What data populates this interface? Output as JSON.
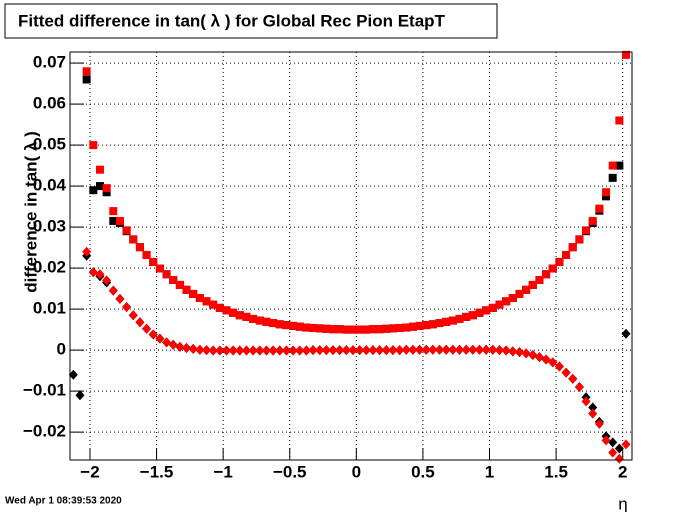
{
  "chart_data": {
    "type": "scatter",
    "title": "Fitted difference in tan( λ ) for Global Rec Pion EtapT",
    "y_label": "difference in tan( λ )",
    "x_label": "η",
    "timestamp": "Wed Apr  1 08:39:53 2020",
    "xlim": [
      -2.15,
      2.07
    ],
    "ylim": [
      -0.0268,
      0.0727
    ],
    "grid": true,
    "xticks": [
      {
        "value": -2,
        "label": "−2"
      },
      {
        "value": -1.5,
        "label": "−1.5"
      },
      {
        "value": -1,
        "label": "−1"
      },
      {
        "value": -0.5,
        "label": "−0.5"
      },
      0,
      0.5,
      1,
      1.5,
      2
    ],
    "yticks": [
      {
        "value": -0.02,
        "label": "−0.02"
      },
      {
        "value": -0.01,
        "label": "−0.01"
      },
      0,
      0.01,
      0.02,
      0.03,
      0.04,
      0.05,
      0.06,
      0.07
    ],
    "x": [
      -2.125,
      -2.075,
      -2.025,
      -1.975,
      -1.925,
      -1.875,
      -1.825,
      -1.775,
      -1.725,
      -1.675,
      -1.625,
      -1.575,
      -1.525,
      -1.475,
      -1.425,
      -1.375,
      -1.325,
      -1.275,
      -1.225,
      -1.175,
      -1.125,
      -1.075,
      -1.025,
      -0.975,
      -0.925,
      -0.875,
      -0.825,
      -0.775,
      -0.725,
      -0.675,
      -0.625,
      -0.575,
      -0.525,
      -0.475,
      -0.425,
      -0.375,
      -0.325,
      -0.275,
      -0.225,
      -0.175,
      -0.125,
      -0.075,
      -0.025,
      0.025,
      0.075,
      0.125,
      0.175,
      0.225,
      0.275,
      0.325,
      0.375,
      0.425,
      0.475,
      0.525,
      0.575,
      0.625,
      0.675,
      0.725,
      0.775,
      0.825,
      0.875,
      0.925,
      0.975,
      1.025,
      1.075,
      1.125,
      1.175,
      1.225,
      1.275,
      1.325,
      1.375,
      1.425,
      1.475,
      1.525,
      1.575,
      1.625,
      1.675,
      1.725,
      1.775,
      1.825,
      1.875,
      1.925,
      1.975,
      2.025
    ],
    "series": [
      {
        "marker": "square",
        "color": "#000000",
        "values": [
          null,
          null,
          0.066,
          0.039,
          0.04,
          0.0385,
          0.0315,
          0.031,
          0.029,
          0.027,
          0.0251,
          0.0232,
          0.0215,
          0.0199,
          0.0185,
          0.0171,
          0.0159,
          0.0147,
          0.0137,
          0.0127,
          0.0119,
          0.0111,
          0.0103,
          0.0097,
          0.0091,
          0.0085,
          0.0081,
          0.0076,
          0.0072,
          0.0069,
          0.0066,
          0.0063,
          0.0061,
          0.0059,
          0.0057,
          0.0055,
          0.0054,
          0.0053,
          0.0052,
          0.0051,
          0.0051,
          0.005,
          0.005,
          0.005,
          0.005,
          0.0051,
          0.0051,
          0.0052,
          0.0053,
          0.0054,
          0.0055,
          0.0057,
          0.0059,
          0.0061,
          0.0063,
          0.0066,
          0.0069,
          0.0072,
          0.0076,
          0.0081,
          0.0085,
          0.0091,
          0.0097,
          0.0103,
          0.0111,
          0.0119,
          0.0127,
          0.0137,
          0.0147,
          0.0159,
          0.0171,
          0.0185,
          0.0199,
          0.0215,
          0.0232,
          0.0251,
          0.027,
          0.029,
          0.031,
          0.034,
          0.0375,
          0.042,
          0.045,
          null
        ]
      },
      {
        "marker": "square",
        "color": "#ff0000",
        "values": [
          null,
          null,
          0.068,
          0.05,
          0.044,
          0.0395,
          0.0339,
          0.0315,
          0.0292,
          0.027,
          0.0251,
          0.0232,
          0.0215,
          0.0199,
          0.0185,
          0.0171,
          0.0159,
          0.0147,
          0.0137,
          0.0127,
          0.0119,
          0.0111,
          0.0103,
          0.0097,
          0.0091,
          0.0085,
          0.0081,
          0.0076,
          0.0072,
          0.0069,
          0.0066,
          0.0063,
          0.0061,
          0.0059,
          0.0057,
          0.0055,
          0.0054,
          0.0053,
          0.0052,
          0.0051,
          0.0051,
          0.005,
          0.005,
          0.005,
          0.005,
          0.0051,
          0.0051,
          0.0052,
          0.0053,
          0.0054,
          0.0055,
          0.0057,
          0.0059,
          0.0061,
          0.0063,
          0.0066,
          0.0069,
          0.0072,
          0.0076,
          0.0081,
          0.0085,
          0.0091,
          0.0097,
          0.0103,
          0.0111,
          0.0119,
          0.0127,
          0.0137,
          0.0147,
          0.0159,
          0.0171,
          0.0185,
          0.0199,
          0.0215,
          0.0232,
          0.0251,
          0.027,
          0.0292,
          0.0315,
          0.0345,
          0.0385,
          0.045,
          0.056,
          0.072
        ]
      },
      {
        "marker": "diamond",
        "color": "#000000",
        "values": [
          -0.006,
          -0.011,
          0.023,
          0.019,
          0.018,
          0.0165,
          0.0145,
          0.0125,
          0.0105,
          0.0085,
          0.0068,
          0.0052,
          0.0038,
          0.0028,
          0.0019,
          0.0013,
          0.0008,
          0.0005,
          0.0003,
          0.0001,
          0,
          -0.0001,
          -0.0001,
          -0.0001,
          -0.0001,
          -0.0001,
          -0.0001,
          -0.0001,
          -0.0001,
          -0.0001,
          -0.0001,
          -0.0001,
          -0.0001,
          -0.0001,
          -0.0001,
          -0.0001,
          0,
          0,
          0,
          0,
          0,
          0,
          0,
          0,
          0,
          0,
          0,
          0,
          0,
          0,
          0.0001,
          0.0001,
          0.0001,
          0.0001,
          0.0001,
          0.0001,
          0.0001,
          0.0001,
          0.0001,
          0.0001,
          0.0001,
          0.0001,
          0.0001,
          0.0001,
          0,
          -0.0001,
          -0.0003,
          -0.0005,
          -0.0008,
          -0.0012,
          -0.0017,
          -0.0023,
          -0.003,
          -0.004,
          -0.0055,
          -0.007,
          -0.009,
          -0.0115,
          -0.014,
          -0.0175,
          -0.021,
          -0.0225,
          -0.024,
          0.004
        ]
      },
      {
        "marker": "diamond",
        "color": "#ff0000",
        "values": [
          null,
          null,
          0.024,
          0.019,
          0.0185,
          0.017,
          0.0145,
          0.0125,
          0.0105,
          0.0085,
          0.0068,
          0.0052,
          0.0038,
          0.0028,
          0.0019,
          0.0013,
          0.0008,
          0.0005,
          0.0003,
          0.0001,
          0,
          -0.0001,
          -0.0001,
          -0.0001,
          -0.0001,
          -0.0001,
          -0.0001,
          -0.0001,
          -0.0001,
          -0.0001,
          -0.0001,
          -0.0001,
          -0.0001,
          -0.0001,
          -0.0001,
          -0.0001,
          0,
          0,
          0,
          0,
          0,
          0,
          0,
          0,
          0,
          0,
          0,
          0,
          0,
          0,
          0.0001,
          0.0001,
          0.0001,
          0.0001,
          0.0001,
          0.0001,
          0.0001,
          0.0001,
          0.0001,
          0.0001,
          0.0001,
          0.0001,
          0.0001,
          0.0001,
          0,
          -0.0001,
          -0.0003,
          -0.0005,
          -0.0008,
          -0.0012,
          -0.0017,
          -0.0023,
          -0.003,
          -0.004,
          -0.0055,
          -0.007,
          -0.009,
          -0.0125,
          -0.0155,
          -0.018,
          -0.022,
          -0.025,
          -0.0265,
          -0.023
        ]
      }
    ]
  }
}
